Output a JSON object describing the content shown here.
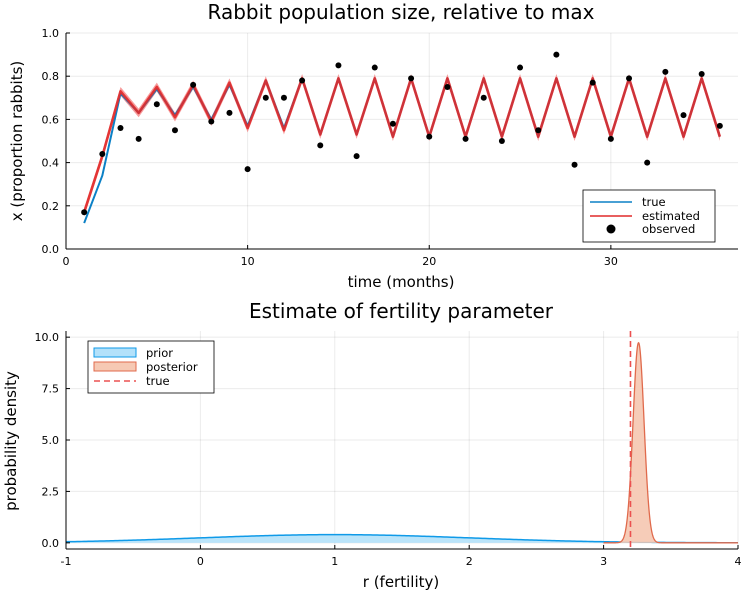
{
  "colors": {
    "true": "#0b80c6",
    "estimated": "#e12a2a",
    "band": "#f47b7b",
    "observed": "#000000",
    "prior_line": "#0f9ae8",
    "prior_fill": "#b3e1fa",
    "posterior_line": "#e06a4c",
    "posterior_fill": "#f6c9b4",
    "true_line": "#ec5050"
  },
  "chart_data": [
    {
      "type": "line",
      "title": "Rabbit population size, relative to max",
      "xlabel": "time (months)",
      "ylabel": "x (proportion rabbits)",
      "xlim": [
        0,
        37
      ],
      "ylim": [
        0,
        1
      ],
      "xticks": [
        0,
        10,
        20,
        30
      ],
      "yticks": [
        0.0,
        0.2,
        0.4,
        0.6,
        0.8,
        1.0
      ],
      "xtick_labels": [
        "0",
        "10",
        "20",
        "30"
      ],
      "ytick_labels": [
        "0.0",
        "0.2",
        "0.4",
        "0.6",
        "0.8",
        "1.0"
      ],
      "legend": {
        "position": "bottom-right",
        "entries": [
          {
            "label": "true",
            "kind": "line",
            "color": "#0b80c6"
          },
          {
            "label": "estimated",
            "kind": "line",
            "color": "#e12a2a"
          },
          {
            "label": "observed",
            "kind": "marker",
            "color": "#000000"
          }
        ]
      },
      "x": [
        1,
        2,
        3,
        4,
        5,
        6,
        7,
        8,
        9,
        10,
        11,
        12,
        13,
        14,
        15,
        16,
        17,
        18,
        19,
        20,
        21,
        22,
        23,
        24,
        25,
        26,
        27,
        28,
        29,
        30,
        31,
        32,
        33,
        34,
        35,
        36
      ],
      "series": [
        {
          "name": "true",
          "values": [
            0.12,
            0.34,
            0.72,
            0.63,
            0.74,
            0.62,
            0.75,
            0.6,
            0.76,
            0.57,
            0.78,
            0.56,
            0.79,
            0.53,
            0.79,
            0.53,
            0.79,
            0.52,
            0.79,
            0.52,
            0.79,
            0.52,
            0.79,
            0.52,
            0.79,
            0.52,
            0.79,
            0.52,
            0.79,
            0.52,
            0.79,
            0.52,
            0.79,
            0.52,
            0.79,
            0.52
          ]
        },
        {
          "name": "estimated",
          "values": [
            0.17,
            0.43,
            0.73,
            0.63,
            0.75,
            0.61,
            0.76,
            0.59,
            0.77,
            0.56,
            0.78,
            0.55,
            0.79,
            0.53,
            0.79,
            0.53,
            0.79,
            0.52,
            0.79,
            0.52,
            0.79,
            0.52,
            0.79,
            0.52,
            0.79,
            0.52,
            0.79,
            0.52,
            0.79,
            0.52,
            0.79,
            0.52,
            0.79,
            0.52,
            0.79,
            0.52
          ],
          "band_halfwidth": 0.02
        },
        {
          "name": "observed",
          "values": [
            0.17,
            0.44,
            0.56,
            0.51,
            0.67,
            0.55,
            0.76,
            0.59,
            0.63,
            0.37,
            0.7,
            0.7,
            0.78,
            0.48,
            0.85,
            0.43,
            0.84,
            0.58,
            0.79,
            0.52,
            0.75,
            0.51,
            0.7,
            0.5,
            0.84,
            0.55,
            0.9,
            0.39,
            0.77,
            0.51,
            0.79,
            0.4,
            0.82,
            0.62,
            0.81,
            0.57
          ]
        }
      ]
    },
    {
      "type": "area",
      "title": "Estimate of fertility parameter",
      "xlabel": "r (fertility)",
      "ylabel": "probability density",
      "xlim": [
        -1,
        4
      ],
      "ylim": [
        -0.3,
        10.3
      ],
      "xticks": [
        -1,
        0,
        1,
        2,
        3,
        4
      ],
      "yticks": [
        0.0,
        2.5,
        5.0,
        7.5,
        10.0
      ],
      "xtick_labels": [
        "-1",
        "0",
        "1",
        "2",
        "3",
        "4"
      ],
      "ytick_labels": [
        "0.0",
        "2.5",
        "5.0",
        "7.5",
        "10.0"
      ],
      "legend": {
        "position": "top-left",
        "entries": [
          {
            "label": "prior",
            "kind": "fill",
            "color": "#b3e1fa"
          },
          {
            "label": "posterior",
            "kind": "fill",
            "color": "#f6c9b4"
          },
          {
            "label": "true",
            "kind": "dashed",
            "color": "#ec5050"
          }
        ]
      },
      "series": [
        {
          "name": "prior",
          "distribution": "normal",
          "mean": 1.0,
          "sd": 1.0
        },
        {
          "name": "posterior",
          "distribution": "normal",
          "mean": 3.26,
          "sd": 0.041
        },
        {
          "name": "true",
          "vline": 3.2
        }
      ]
    }
  ]
}
